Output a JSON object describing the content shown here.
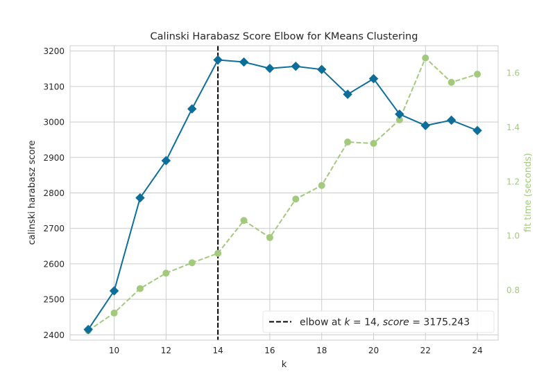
{
  "chart_data": {
    "type": "line",
    "title": "Calinski Harabasz Score Elbow for KMeans Clustering",
    "xlabel": "k",
    "ylabel": "calinski harabasz score",
    "y2label": "fit time (seconds)",
    "xlim": [
      8.3,
      24.8
    ],
    "ylim": [
      2385,
      3215
    ],
    "y2lim": [
      0.615,
      1.7
    ],
    "xticks": [
      10,
      12,
      14,
      16,
      18,
      20,
      22,
      24
    ],
    "yticks": [
      2400,
      2500,
      2600,
      2700,
      2800,
      2900,
      3000,
      3100,
      3200
    ],
    "y2ticks": [
      0.8,
      1.0,
      1.2,
      1.4,
      1.6
    ],
    "y2tick_labels": [
      "0.8",
      "1.0",
      "1.2",
      "1.4",
      "1.6"
    ],
    "x": [
      9,
      10,
      11,
      12,
      13,
      14,
      15,
      16,
      17,
      18,
      19,
      20,
      21,
      22,
      23,
      24
    ],
    "series": [
      {
        "name": "calinski harabasz score",
        "axis": "left",
        "color": "#0d6e9a",
        "style": "solid",
        "marker": "diamond",
        "values": [
          2415,
          2524,
          2786,
          2891,
          3037,
          3175,
          3169,
          3151,
          3157,
          3148,
          3078,
          3122,
          3022,
          2990,
          3005,
          2976
        ]
      },
      {
        "name": "fit time (seconds)",
        "axis": "right",
        "color": "#a2c97c",
        "style": "dashed",
        "marker": "circle",
        "values": [
          0.65,
          0.715,
          0.805,
          0.862,
          0.9,
          0.935,
          1.056,
          0.993,
          1.135,
          1.185,
          1.345,
          1.34,
          1.427,
          1.655,
          1.565,
          1.595
        ]
      }
    ],
    "elbow": {
      "k": 14,
      "score": "3175.243",
      "color": "#000000"
    },
    "legend": {
      "position": "bottom-right",
      "prefix": "elbow at ",
      "k_symbol": "k",
      "equals1": " = 14, ",
      "score_symbol": "score",
      "equals2": " = 3175.243"
    },
    "grid": true
  }
}
